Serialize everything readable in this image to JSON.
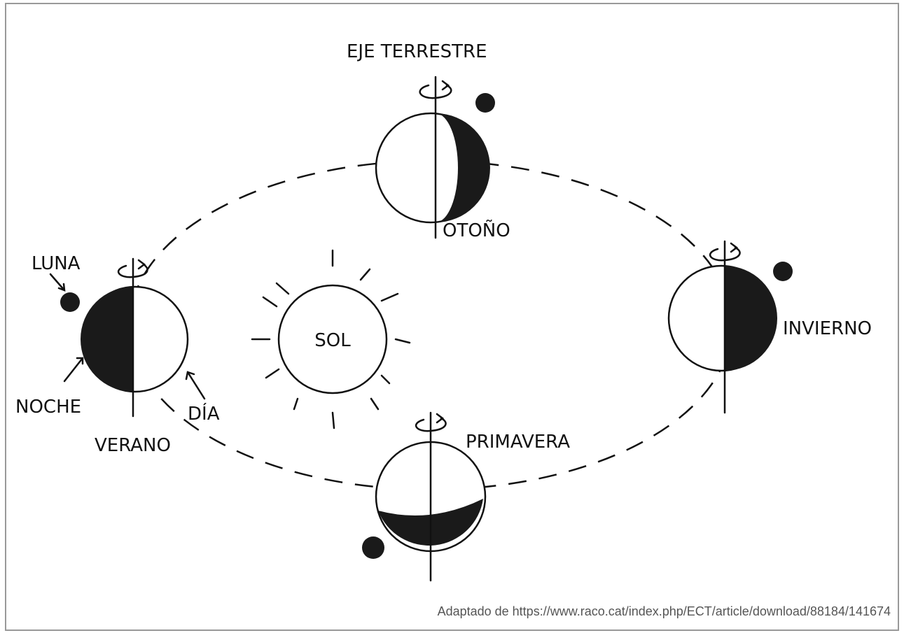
{
  "labels": {
    "axis": "EJE TERRESTRE",
    "autumn": "OTOÑO",
    "moon": "LUNA",
    "summer": "VERANO",
    "night": "NOCHE",
    "day": "DÍA",
    "sun": "SOL",
    "winter": "INVIERNO",
    "spring": "PRIMAVERA"
  },
  "caption": "Adaptado de https://www.raco.cat/index.php/ECT/article/download/88184/141674"
}
